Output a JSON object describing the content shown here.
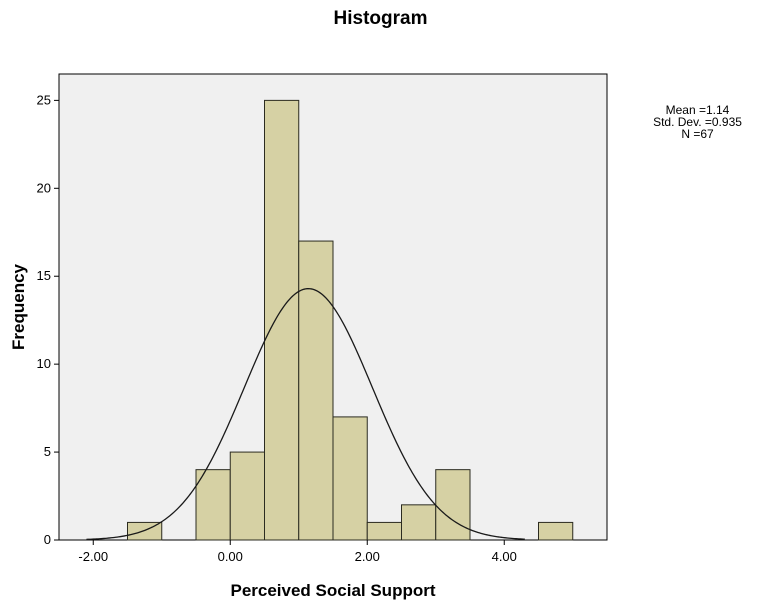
{
  "chart_data": {
    "type": "bar",
    "title": "Histogram",
    "xlabel": "Perceived Social Support",
    "ylabel": "Frequency",
    "xlim": [
      -2.5,
      5.5
    ],
    "ylim": [
      0,
      26.5
    ],
    "xticks": [
      -2.0,
      0.0,
      2.0,
      4.0
    ],
    "xtick_labels": [
      "-2.00",
      "0.00",
      "2.00",
      "4.00"
    ],
    "yticks": [
      0,
      5,
      10,
      15,
      20,
      25
    ],
    "ytick_labels": [
      "0",
      "5",
      "10",
      "15",
      "20",
      "25"
    ],
    "bin_width": 0.5,
    "bins": [
      {
        "x0": -1.5,
        "x1": -1.0,
        "count": 1
      },
      {
        "x0": -0.5,
        "x1": 0.0,
        "count": 4
      },
      {
        "x0": 0.0,
        "x1": 0.5,
        "count": 5
      },
      {
        "x0": 0.5,
        "x1": 1.0,
        "count": 25
      },
      {
        "x0": 1.0,
        "x1": 1.5,
        "count": 17
      },
      {
        "x0": 1.5,
        "x1": 2.0,
        "count": 7
      },
      {
        "x0": 2.0,
        "x1": 2.5,
        "count": 1
      },
      {
        "x0": 2.5,
        "x1": 3.0,
        "count": 2
      },
      {
        "x0": 3.0,
        "x1": 3.5,
        "count": 4
      },
      {
        "x0": 4.5,
        "x1": 5.0,
        "count": 1
      }
    ],
    "normal_curve": {
      "mean": 1.14,
      "sd": 0.935,
      "n": 67
    },
    "stats_labels": [
      "Mean =1.14",
      "Std. Dev. =0.935",
      "N =67"
    ],
    "grid": false,
    "colors": {
      "bar_fill": "#d6d1a4",
      "bar_stroke": "#2b2b20",
      "plot_bg": "#f0f0f0",
      "curve": "#1a1a1a"
    }
  }
}
